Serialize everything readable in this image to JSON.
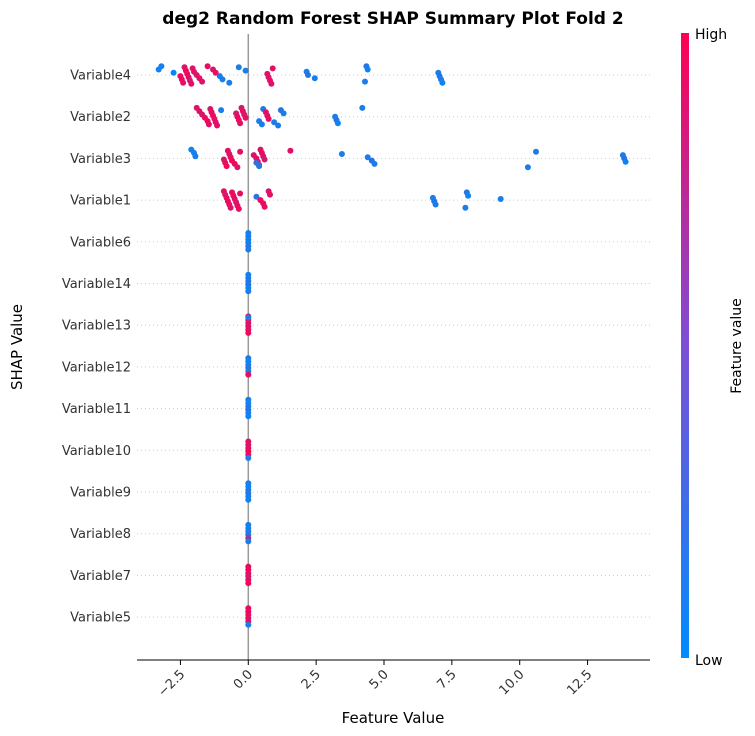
{
  "chart_data": {
    "type": "scatter",
    "title": "deg2 Random Forest SHAP Summary Plot Fold 2",
    "xlabel": "Feature Value",
    "ylabel": "SHAP Value",
    "xlim": [
      -4.1,
      14.8
    ],
    "xticks": [
      -2.5,
      0.0,
      2.5,
      5.0,
      7.5,
      10.0,
      12.5
    ],
    "xtick_labels": [
      "−2.5",
      "0.0",
      "2.5",
      "5.0",
      "7.5",
      "10.0",
      "12.5"
    ],
    "grid": false,
    "colorbar": {
      "label": "Feature value",
      "high_label": "High",
      "low_label": "Low"
    },
    "colors": {
      "high": "#ff0052",
      "low": "#008bfb",
      "zero_line": "#999999",
      "row_line": "#cccccc"
    },
    "categories": [
      "Variable4",
      "Variable2",
      "Variable3",
      "Variable1",
      "Variable6",
      "Variable14",
      "Variable13",
      "Variable12",
      "Variable11",
      "Variable10",
      "Variable9",
      "Variable8",
      "Variable7",
      "Variable5"
    ],
    "series": [
      {
        "feature": "Variable4",
        "points": [
          [
            -3.2,
            0.1
          ],
          [
            -3.3,
            0.05
          ],
          [
            -2.75,
            0.05
          ],
          [
            -2.5,
            0.9
          ],
          [
            -2.45,
            0.95
          ],
          [
            -2.4,
            0.9
          ],
          [
            -2.35,
            0.85
          ],
          [
            -2.3,
            0.95
          ],
          [
            -2.25,
            0.9
          ],
          [
            -2.2,
            0.9
          ],
          [
            -2.15,
            0.8
          ],
          [
            -2.1,
            0.9
          ],
          [
            -2.05,
            0.85
          ],
          [
            -2.0,
            0.9
          ],
          [
            -1.9,
            0.85
          ],
          [
            -1.8,
            0.9
          ],
          [
            -1.7,
            0.85
          ],
          [
            -1.5,
            0.9
          ],
          [
            -1.3,
            0.85
          ],
          [
            -1.2,
            0.9
          ],
          [
            -1.05,
            0.1
          ],
          [
            -0.95,
            0.1
          ],
          [
            -0.7,
            0.1
          ],
          [
            -0.35,
            0.1
          ],
          [
            -0.1,
            0.1
          ],
          [
            0.7,
            0.9
          ],
          [
            0.75,
            0.85
          ],
          [
            0.8,
            0.9
          ],
          [
            0.85,
            0.85
          ],
          [
            0.9,
            0.9
          ],
          [
            2.15,
            0.1
          ],
          [
            2.2,
            0.15
          ],
          [
            2.45,
            0.1
          ],
          [
            4.3,
            0.1
          ],
          [
            4.35,
            0.15
          ],
          [
            4.4,
            0.05
          ],
          [
            7.0,
            0.1
          ],
          [
            7.05,
            0.15
          ],
          [
            7.1,
            0.1
          ],
          [
            7.15,
            0.05
          ]
        ]
      },
      {
        "feature": "Variable2",
        "points": [
          [
            -1.9,
            0.85
          ],
          [
            -1.8,
            0.9
          ],
          [
            -1.7,
            0.85
          ],
          [
            -1.6,
            0.9
          ],
          [
            -1.5,
            0.95
          ],
          [
            -1.45,
            0.9
          ],
          [
            -1.4,
            0.85
          ],
          [
            -1.35,
            0.9
          ],
          [
            -1.3,
            0.95
          ],
          [
            -1.25,
            0.9
          ],
          [
            -1.2,
            0.85
          ],
          [
            -1.15,
            0.9
          ],
          [
            -1.0,
            0.1
          ],
          [
            -0.45,
            0.85
          ],
          [
            -0.4,
            0.9
          ],
          [
            -0.35,
            0.95
          ],
          [
            -0.3,
            0.9
          ],
          [
            -0.25,
            0.85
          ],
          [
            -0.2,
            0.9
          ],
          [
            -0.15,
            0.85
          ],
          [
            -0.1,
            0.9
          ],
          [
            0.4,
            0.1
          ],
          [
            0.5,
            0.1
          ],
          [
            0.55,
            0.15
          ],
          [
            0.65,
            0.9
          ],
          [
            0.7,
            0.85
          ],
          [
            0.75,
            0.9
          ],
          [
            0.95,
            0.1
          ],
          [
            1.1,
            0.1
          ],
          [
            1.2,
            0.15
          ],
          [
            1.3,
            0.1
          ],
          [
            3.2,
            0.1
          ],
          [
            3.25,
            0.15
          ],
          [
            3.3,
            0.05
          ],
          [
            4.2,
            0.1
          ]
        ]
      },
      {
        "feature": "Variable3",
        "points": [
          [
            -2.1,
            0.05
          ],
          [
            -2.0,
            0.1
          ],
          [
            -1.95,
            0.1
          ],
          [
            -0.9,
            0.85
          ],
          [
            -0.85,
            0.9
          ],
          [
            -0.8,
            0.95
          ],
          [
            -0.75,
            0.9
          ],
          [
            -0.7,
            0.85
          ],
          [
            -0.65,
            0.9
          ],
          [
            -0.6,
            0.95
          ],
          [
            -0.5,
            0.9
          ],
          [
            -0.4,
            0.85
          ],
          [
            -0.3,
            0.9
          ],
          [
            0.2,
            0.85
          ],
          [
            0.3,
            0.9
          ],
          [
            0.35,
            0.95
          ],
          [
            0.4,
            0.9
          ],
          [
            0.45,
            0.85
          ],
          [
            0.5,
            0.9
          ],
          [
            0.55,
            0.85
          ],
          [
            0.6,
            0.8
          ],
          [
            0.3,
            0.2
          ],
          [
            0.4,
            0.15
          ],
          [
            1.55,
            0.9
          ],
          [
            3.45,
            0.1
          ],
          [
            4.4,
            0.1
          ],
          [
            4.55,
            0.15
          ],
          [
            4.65,
            0.1
          ],
          [
            10.3,
            0.1
          ],
          [
            10.6,
            0.1
          ],
          [
            13.8,
            0.1
          ],
          [
            13.85,
            0.15
          ],
          [
            13.9,
            0.05
          ]
        ]
      },
      {
        "feature": "Variable1",
        "points": [
          [
            -0.9,
            0.9
          ],
          [
            -0.85,
            0.85
          ],
          [
            -0.8,
            0.9
          ],
          [
            -0.75,
            0.95
          ],
          [
            -0.7,
            0.9
          ],
          [
            -0.65,
            0.85
          ],
          [
            -0.6,
            0.9
          ],
          [
            -0.55,
            0.95
          ],
          [
            -0.5,
            0.9
          ],
          [
            -0.45,
            0.85
          ],
          [
            -0.4,
            0.9
          ],
          [
            -0.35,
            0.95
          ],
          [
            -0.3,
            0.9
          ],
          [
            0.3,
            0.15
          ],
          [
            0.45,
            0.9
          ],
          [
            0.55,
            0.95
          ],
          [
            0.6,
            0.9
          ],
          [
            0.75,
            0.85
          ],
          [
            0.8,
            0.9
          ],
          [
            6.8,
            0.1
          ],
          [
            6.85,
            0.15
          ],
          [
            6.9,
            0.1
          ],
          [
            8.0,
            0.1
          ],
          [
            8.05,
            0.15
          ],
          [
            8.1,
            0.05
          ],
          [
            9.3,
            0.1
          ]
        ]
      },
      {
        "feature": "Variable6",
        "points": [
          [
            0.0,
            0.05
          ],
          [
            0.0,
            0.1
          ],
          [
            0.0,
            0.1
          ],
          [
            0.0,
            0.05
          ],
          [
            0.0,
            0.15
          ],
          [
            0.0,
            0.1
          ]
        ]
      },
      {
        "feature": "Variable14",
        "points": [
          [
            0.0,
            0.05
          ],
          [
            0.0,
            0.1
          ],
          [
            0.0,
            0.1
          ],
          [
            0.0,
            0.15
          ],
          [
            0.0,
            0.05
          ],
          [
            0.0,
            0.1
          ]
        ]
      },
      {
        "feature": "Variable13",
        "points": [
          [
            0.0,
            0.9
          ],
          [
            0.0,
            0.95
          ],
          [
            0.0,
            0.9
          ],
          [
            0.0,
            0.85
          ],
          [
            0.0,
            0.9
          ],
          [
            0.0,
            0.95
          ],
          [
            0.0,
            0.1
          ]
        ]
      },
      {
        "feature": "Variable12",
        "points": [
          [
            0.0,
            0.1
          ],
          [
            0.0,
            0.05
          ],
          [
            0.0,
            0.1
          ],
          [
            0.0,
            0.15
          ],
          [
            0.0,
            0.1
          ],
          [
            0.0,
            0.9
          ]
        ]
      },
      {
        "feature": "Variable11",
        "points": [
          [
            0.0,
            0.1
          ],
          [
            0.0,
            0.05
          ],
          [
            0.0,
            0.1
          ],
          [
            0.0,
            0.15
          ],
          [
            0.0,
            0.1
          ],
          [
            0.0,
            0.05
          ]
        ]
      },
      {
        "feature": "Variable10",
        "points": [
          [
            0.0,
            0.9
          ],
          [
            0.0,
            0.85
          ],
          [
            0.0,
            0.9
          ],
          [
            0.0,
            0.95
          ],
          [
            0.0,
            0.9
          ],
          [
            0.0,
            0.1
          ]
        ]
      },
      {
        "feature": "Variable9",
        "points": [
          [
            0.0,
            0.1
          ],
          [
            0.0,
            0.05
          ],
          [
            0.0,
            0.1
          ],
          [
            0.0,
            0.15
          ],
          [
            0.0,
            0.1
          ],
          [
            0.0,
            0.05
          ]
        ]
      },
      {
        "feature": "Variable8",
        "points": [
          [
            0.0,
            0.1
          ],
          [
            0.0,
            0.05
          ],
          [
            0.0,
            0.1
          ],
          [
            0.0,
            0.15
          ],
          [
            0.0,
            0.6
          ],
          [
            0.0,
            0.1
          ]
        ]
      },
      {
        "feature": "Variable7",
        "points": [
          [
            0.0,
            0.9
          ],
          [
            0.0,
            0.95
          ],
          [
            0.0,
            0.9
          ],
          [
            0.0,
            0.85
          ],
          [
            0.0,
            0.9
          ],
          [
            0.0,
            0.95
          ]
        ]
      },
      {
        "feature": "Variable5",
        "points": [
          [
            0.0,
            0.9
          ],
          [
            0.0,
            0.95
          ],
          [
            0.0,
            0.9
          ],
          [
            0.0,
            0.85
          ],
          [
            0.0,
            0.9
          ],
          [
            0.0,
            0.1
          ]
        ]
      }
    ]
  }
}
